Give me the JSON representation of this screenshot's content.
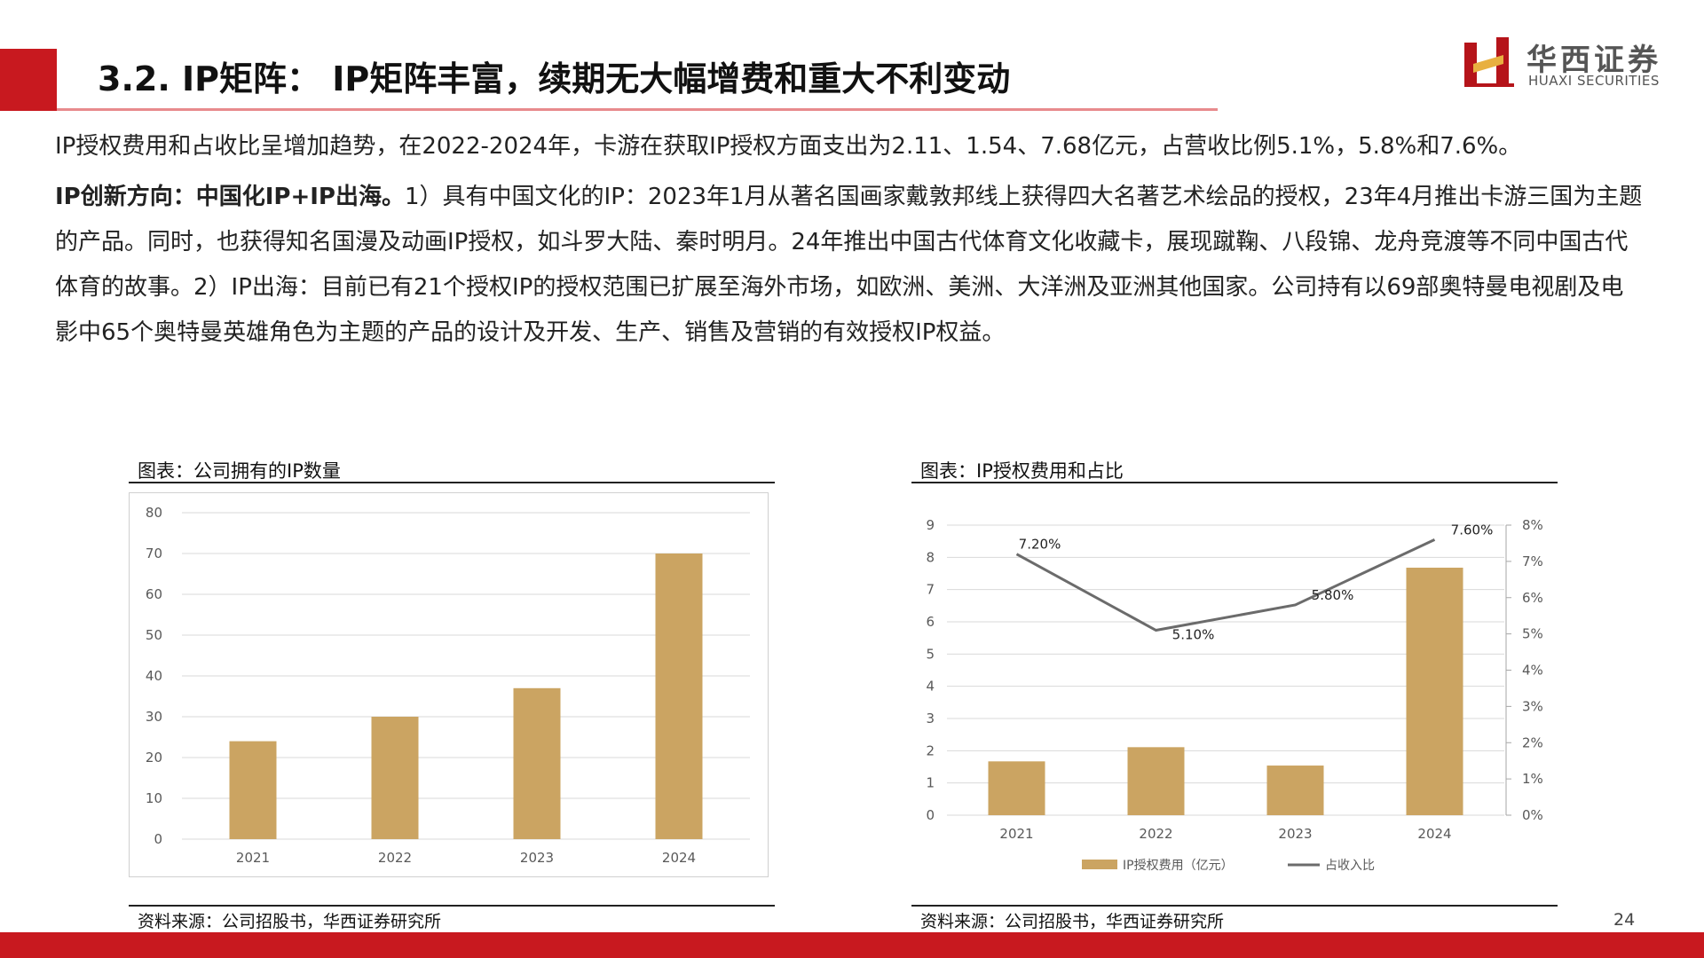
{
  "header": {
    "title": "3.2. IP矩阵： IP矩阵丰富，续期无大幅增费和重大不利变动",
    "logo_cn": "华西证券",
    "logo_en": "HUAXI SECURITIES"
  },
  "body": {
    "para1": "IP授权费用和占收比呈增加趋势，在2022-2024年，卡游在获取IP授权方面支出为2.11、1.54、7.68亿元，占营收比例5.1%，5.8%和7.6%。",
    "para2_bold": "IP创新方向：中国化IP+IP出海。",
    "para2_rest": "1）具有中国文化的IP：2023年1月从著名国画家戴敦邦线上获得四大名著艺术绘品的授权，23年4月推出卡游三国为主题的产品。同时，也获得知名国漫及动画IP授权，如斗罗大陆、秦时明月。24年推出中国古代体育文化收藏卡，展现蹴鞠、八段锦、龙舟竞渡等不同中国古代体育的故事。2）IP出海：目前已有21个授权IP的授权范围已扩展至海外市场，如欧洲、美洲、大洋洲及亚洲其他国家。公司持有以69部奥特曼电视剧及电影中65个奥特曼英雄角色为主题的产品的设计及开发、生产、销售及营销的有效授权IP权益。"
  },
  "chart1": {
    "title": "图表：公司拥有的IP数量",
    "source": "资料来源：公司招股书，华西证券研究所"
  },
  "chart2": {
    "title": "图表：IP授权费用和占比",
    "source": "资料来源：公司招股书，华西证券研究所"
  },
  "chart_data": [
    {
      "type": "bar",
      "title": "图表：公司拥有的IP数量",
      "categories": [
        "2021",
        "2022",
        "2023",
        "2024"
      ],
      "values": [
        24,
        30,
        37,
        70
      ],
      "ylim": [
        0,
        80
      ],
      "yticks": [
        "0",
        "10",
        "20",
        "30",
        "40",
        "50",
        "60",
        "70",
        "80"
      ],
      "bar_color": "#cba462",
      "grid": true
    },
    {
      "type": "bar+line",
      "title": "图表：IP授权费用和占比",
      "categories": [
        "2021",
        "2022",
        "2023",
        "2024"
      ],
      "series": [
        {
          "name": "IP授权费用（亿元）",
          "type": "bar",
          "axis": "left",
          "values": [
            1.67,
            2.11,
            1.54,
            7.68
          ],
          "color": "#cba462"
        },
        {
          "name": "占收入比",
          "type": "line",
          "axis": "right",
          "values": [
            7.2,
            5.1,
            5.8,
            7.6
          ],
          "labels": [
            "7.20%",
            "5.10%",
            "5.80%",
            "7.60%"
          ],
          "color": "#6b6b6b"
        }
      ],
      "ylim_left": [
        0,
        9
      ],
      "yticks_left": [
        "0",
        "1",
        "2",
        "3",
        "4",
        "5",
        "6",
        "7",
        "8",
        "9"
      ],
      "ylim_right": [
        0,
        8
      ],
      "yticks_right": [
        "0%",
        "1%",
        "2%",
        "3%",
        "4%",
        "5%",
        "6%",
        "7%",
        "8%"
      ],
      "legend_position": "bottom",
      "grid": true
    }
  ],
  "footer": {
    "page_number": "24"
  }
}
